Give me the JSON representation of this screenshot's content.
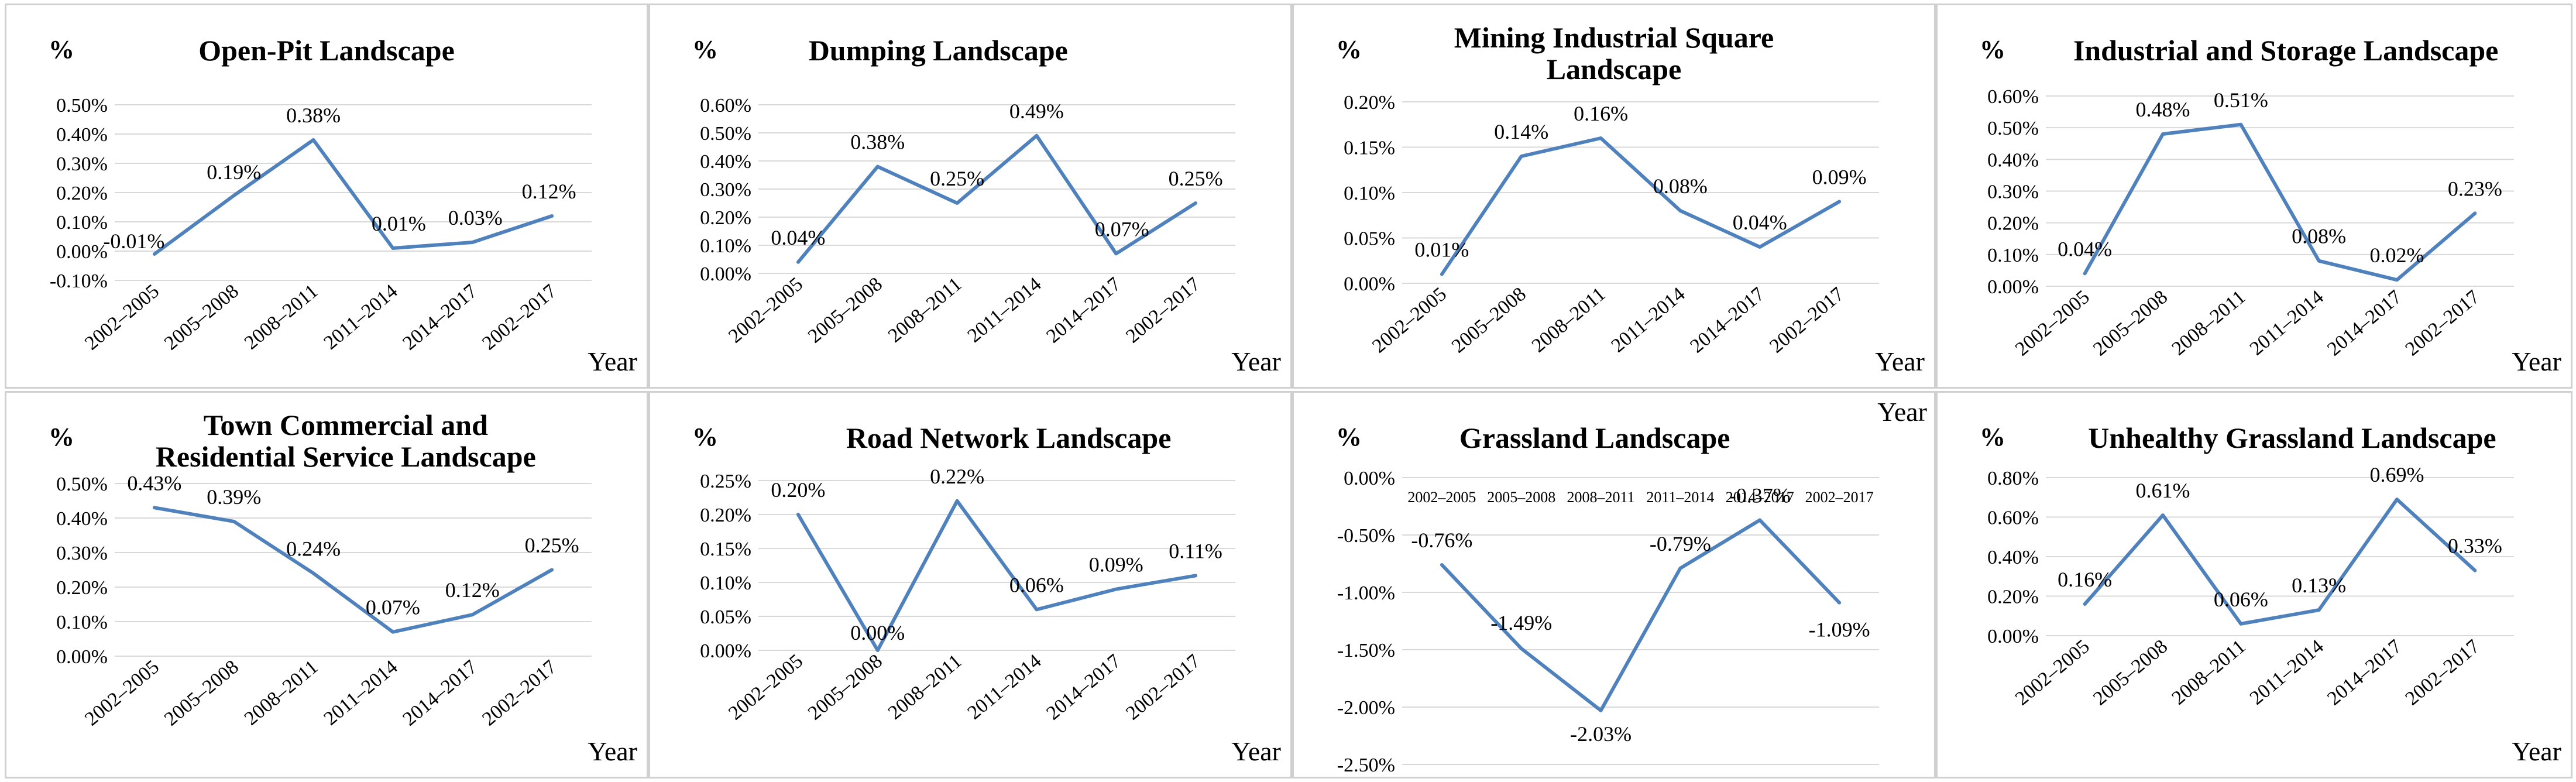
{
  "common": {
    "unit": "%",
    "xlabel": "Year",
    "line_color": "#4f81bd"
  },
  "chart_data": [
    {
      "type": "line",
      "title": [
        "Open-Pit  Landscape"
      ],
      "categories": [
        "2002–2005",
        "2005–2008",
        "2008–2011",
        "2011–2014",
        "2014–2017",
        "2002–2017"
      ],
      "values": [
        -0.01,
        0.19,
        0.38,
        0.01,
        0.03,
        0.12
      ],
      "value_labels": [
        "-0.01%",
        "0.19%",
        "0.38%",
        "0.01%",
        "0.03%",
        "0.12%"
      ],
      "ylim": [
        -0.1,
        0.5
      ],
      "yticks": [
        "0.50%",
        "0.40%",
        "0.30%",
        "0.20%",
        "0.10%",
        "0.00%",
        "-0.10%"
      ],
      "ylabel": "%",
      "xlabel": "Year",
      "x_axis_position": "bottom"
    },
    {
      "type": "line",
      "title": [
        "Dumping Landscape"
      ],
      "categories": [
        "2002–2005",
        "2005–2008",
        "2008–2011",
        "2011–2014",
        "2014–2017",
        "2002–2017"
      ],
      "values": [
        0.04,
        0.38,
        0.25,
        0.49,
        0.07,
        0.25
      ],
      "value_labels": [
        "0.04%",
        "0.38%",
        "0.25%",
        "0.49%",
        "0.07%",
        "0.25%"
      ],
      "ylim": [
        0,
        0.6
      ],
      "yticks": [
        "0.60%",
        "0.50%",
        "0.40%",
        "0.30%",
        "0.20%",
        "0.10%",
        "0.00%"
      ],
      "ylabel": "%",
      "xlabel": "Year",
      "x_axis_position": "bottom"
    },
    {
      "type": "line",
      "title": [
        "Mining Industrial Square",
        "Landscape"
      ],
      "categories": [
        "2002–2005",
        "2005–2008",
        "2008–2011",
        "2011–2014",
        "2014–2017",
        "2002–2017"
      ],
      "values": [
        0.01,
        0.14,
        0.16,
        0.08,
        0.04,
        0.09
      ],
      "value_labels": [
        "0.01%",
        "0.14%",
        "0.16%",
        "0.08%",
        "0.04%",
        "0.09%"
      ],
      "ylim": [
        0,
        0.2
      ],
      "yticks": [
        "0.20%",
        "0.15%",
        "0.10%",
        "0.05%",
        "0.00%"
      ],
      "ylabel": "%",
      "xlabel": "Year",
      "x_axis_position": "bottom"
    },
    {
      "type": "line",
      "title": [
        "Industrial and Storage Landscape"
      ],
      "categories": [
        "2002–2005",
        "2005–2008",
        "2008–2011",
        "2011–2014",
        "2014–2017",
        "2002–2017"
      ],
      "values": [
        0.04,
        0.48,
        0.51,
        0.08,
        0.02,
        0.23
      ],
      "value_labels": [
        "0.04%",
        "0.48%",
        "0.51%",
        "0.08%",
        "0.02%",
        "0.23%"
      ],
      "ylim": [
        0,
        0.6
      ],
      "yticks": [
        "0.60%",
        "0.50%",
        "0.40%",
        "0.30%",
        "0.20%",
        "0.10%",
        "0.00%"
      ],
      "ylabel": "%",
      "xlabel": "Year",
      "x_axis_position": "bottom"
    },
    {
      "type": "line",
      "title": [
        "Town Commercial and",
        "Residential Service Landscape"
      ],
      "categories": [
        "2002–2005",
        "2005–2008",
        "2008–2011",
        "2011–2014",
        "2014–2017",
        "2002–2017"
      ],
      "values": [
        0.43,
        0.39,
        0.24,
        0.07,
        0.12,
        0.25
      ],
      "value_labels": [
        "0.43%",
        "0.39%",
        "0.24%",
        "0.07%",
        "0.12%",
        "0.25%"
      ],
      "ylim": [
        0,
        0.5
      ],
      "yticks": [
        "0.50%",
        "0.40%",
        "0.30%",
        "0.20%",
        "0.10%",
        "0.00%"
      ],
      "ylabel": "%",
      "xlabel": "Year",
      "x_axis_position": "bottom"
    },
    {
      "type": "line",
      "title": [
        "Road Network Landscape"
      ],
      "categories": [
        "2002–2005",
        "2005–2008",
        "2008–2011",
        "2011–2014",
        "2014–2017",
        "2002–2017"
      ],
      "values": [
        0.2,
        0.0,
        0.22,
        0.06,
        0.09,
        0.11
      ],
      "value_labels": [
        "0.20%",
        "0.00%",
        "0.22%",
        "0.06%",
        "0.09%",
        "0.11%"
      ],
      "ylim": [
        0,
        0.25
      ],
      "yticks": [
        "0.25%",
        "0.20%",
        "0.15%",
        "0.10%",
        "0.05%",
        "0.00%"
      ],
      "ylabel": "%",
      "xlabel": "Year",
      "x_axis_position": "bottom"
    },
    {
      "type": "line",
      "title": [
        "Grassland Landscape"
      ],
      "categories": [
        "2002–2005",
        "2005–2008",
        "2008–2011",
        "2011–2014",
        "2014–2017",
        "2002–2017"
      ],
      "values": [
        -0.76,
        -1.49,
        -2.03,
        -0.79,
        -0.37,
        -1.09
      ],
      "value_labels": [
        "-0.76%",
        "-1.49%",
        "-2.03%",
        "-0.79%",
        "-0.37%",
        "-1.09%"
      ],
      "ylim": [
        -2.5,
        0
      ],
      "yticks": [
        "0.00%",
        "-0.50%",
        "-1.00%",
        "-1.50%",
        "-2.00%",
        "-2.50%"
      ],
      "ylabel": "%",
      "xlabel": "Year",
      "x_axis_position": "top"
    },
    {
      "type": "line",
      "title": [
        "Unhealthy Grassland Landscape"
      ],
      "categories": [
        "2002–2005",
        "2005–2008",
        "2008–2011",
        "2011–2014",
        "2014–2017",
        "2002–2017"
      ],
      "values": [
        0.16,
        0.61,
        0.06,
        0.13,
        0.69,
        0.33
      ],
      "value_labels": [
        "0.16%",
        "0.61%",
        "0.06%",
        "0.13%",
        "0.69%",
        "0.33%"
      ],
      "ylim": [
        0,
        0.8
      ],
      "yticks": [
        "0.80%",
        "0.60%",
        "0.40%",
        "0.20%",
        "0.00%"
      ],
      "ylabel": "%",
      "xlabel": "Year",
      "x_axis_position": "bottom"
    }
  ]
}
